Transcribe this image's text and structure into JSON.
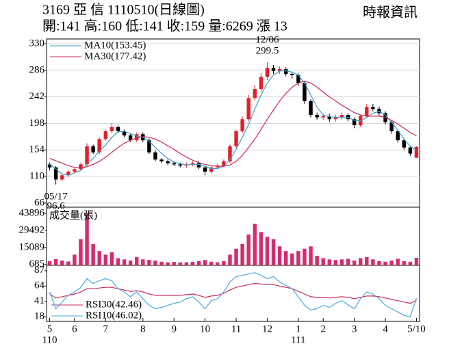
{
  "chart_data": [
    {
      "type": "candlestick",
      "title": "3169  亞  信 1110510(日線圖)",
      "subtitle": "開:141 高:160 低:141 收:159 量:6269 漲 13",
      "source": "時報資訊",
      "up_color": "#e3202a",
      "down_color": "#000000",
      "grid": true,
      "ylim": [
        59,
        338
      ],
      "yticks": [
        66,
        110,
        154,
        198,
        242,
        286,
        330
      ],
      "open": [
        130,
        125,
        105,
        112,
        118,
        122,
        130,
        160,
        150,
        172,
        185,
        192,
        185,
        178,
        170,
        180,
        170,
        150,
        138,
        135,
        132,
        130,
        128,
        130,
        132,
        125,
        118,
        125,
        128,
        135,
        160,
        185,
        205,
        240,
        255,
        275,
        290,
        285,
        288,
        280,
        278,
        265,
        235,
        212,
        208,
        210,
        205,
        208,
        212,
        205,
        195,
        210,
        225,
        222,
        215,
        200,
        185,
        170,
        158,
        141
      ],
      "high": [
        133,
        127,
        115,
        121,
        125,
        133,
        165,
        163,
        175,
        188,
        198,
        195,
        188,
        181,
        183,
        183,
        173,
        153,
        141,
        138,
        135,
        133,
        133,
        135,
        135,
        128,
        128,
        131,
        138,
        163,
        188,
        210,
        245,
        262,
        282,
        299.5,
        295,
        292,
        291,
        284,
        281,
        268,
        238,
        216,
        214,
        214,
        212,
        216,
        215,
        208,
        213,
        230,
        230,
        226,
        218,
        203,
        188,
        173,
        161,
        160
      ],
      "low": [
        120,
        96.6,
        102,
        109,
        115,
        119,
        127,
        147,
        147,
        169,
        182,
        182,
        175,
        167,
        167,
        167,
        147,
        135,
        132,
        129,
        127,
        125,
        125,
        127,
        122,
        112,
        115,
        122,
        125,
        132,
        157,
        182,
        202,
        236,
        250,
        270,
        280,
        280,
        276,
        272,
        260,
        230,
        208,
        204,
        204,
        201,
        201,
        204,
        201,
        190,
        192,
        207,
        218,
        211,
        196,
        181,
        166,
        154,
        144,
        141
      ],
      "close": [
        125,
        105,
        112,
        118,
        122,
        130,
        160,
        150,
        172,
        185,
        192,
        185,
        178,
        170,
        180,
        170,
        150,
        138,
        135,
        132,
        130,
        128,
        130,
        132,
        125,
        118,
        125,
        128,
        135,
        160,
        185,
        205,
        240,
        255,
        275,
        290,
        285,
        288,
        280,
        278,
        265,
        235,
        212,
        208,
        210,
        205,
        208,
        212,
        205,
        195,
        210,
        225,
        222,
        215,
        200,
        185,
        170,
        158,
        148,
        159
      ],
      "series": [
        {
          "name": "MA10(153.45)",
          "color": "#3a9fc8",
          "values": [
            130,
            122,
            114,
            112,
            116,
            120,
            130,
            140,
            152,
            162,
            175,
            184,
            185,
            181,
            177,
            175,
            168,
            158,
            148,
            140,
            134,
            131,
            129,
            130,
            130,
            127,
            123,
            123,
            127,
            138,
            155,
            175,
            196,
            222,
            245,
            265,
            278,
            285,
            285,
            283,
            278,
            265,
            245,
            225,
            212,
            209,
            208,
            208,
            208,
            203,
            202,
            208,
            215,
            218,
            212,
            200,
            187,
            172,
            160,
            153.45
          ]
        },
        {
          "name": "MA30(177.42)",
          "color": "#c8285a",
          "values": [
            140,
            136,
            132,
            128,
            125,
            124,
            126,
            130,
            135,
            142,
            150,
            158,
            165,
            170,
            174,
            176,
            175,
            172,
            167,
            161,
            155,
            148,
            142,
            137,
            133,
            130,
            128,
            127,
            127,
            129,
            135,
            145,
            158,
            172,
            188,
            205,
            220,
            235,
            248,
            258,
            265,
            268,
            265,
            258,
            250,
            242,
            235,
            228,
            222,
            216,
            212,
            210,
            210,
            210,
            208,
            203,
            197,
            190,
            183,
            177.42
          ]
        }
      ],
      "annotations": [
        {
          "text": "12/06",
          "value": 299.5
        },
        {
          "text": "05/17",
          "value": 96.6
        }
      ]
    },
    {
      "type": "bar",
      "title": "成交量(張)",
      "color": "#d42c6e",
      "ylim": [
        0,
        49000
      ],
      "yticks": [
        685,
        15089,
        29492,
        43896
      ],
      "values": [
        3500,
        5200,
        4000,
        3200,
        9000,
        22000,
        43896,
        18000,
        12000,
        9000,
        11000,
        6000,
        5000,
        4000,
        7000,
        5000,
        4500,
        4000,
        3000,
        2500,
        2800,
        2500,
        2600,
        3000,
        3500,
        4500,
        3000,
        2500,
        3500,
        9000,
        14000,
        18000,
        26000,
        35000,
        28000,
        24000,
        22000,
        16000,
        12000,
        10000,
        12000,
        14000,
        16000,
        8000,
        6000,
        5000,
        4500,
        5000,
        5500,
        4000,
        6000,
        7000,
        5000,
        3500,
        3000,
        4000,
        5500,
        3500,
        3000,
        6269
      ]
    },
    {
      "type": "line",
      "ylim": [
        11,
        95
      ],
      "yticks": [
        18,
        41,
        64,
        87
      ],
      "categories": [
        "5",
        null,
        null,
        null,
        "6",
        null,
        null,
        null,
        null,
        "7",
        null,
        null,
        null,
        null,
        null,
        "8",
        null,
        null,
        null,
        null,
        "9",
        null,
        null,
        null,
        null,
        "10",
        null,
        null,
        null,
        null,
        "11",
        null,
        null,
        null,
        null,
        "12",
        null,
        null,
        null,
        null,
        "1",
        null,
        null,
        null,
        "2",
        null,
        null,
        null,
        null,
        "3",
        null,
        null,
        null,
        null,
        "4",
        null,
        null,
        null,
        null,
        "5/10"
      ],
      "years": [
        "110",
        null,
        null,
        null,
        null,
        null,
        null,
        null,
        null,
        null,
        null,
        null,
        null,
        null,
        null,
        null,
        null,
        null,
        null,
        null,
        null,
        null,
        null,
        null,
        null,
        null,
        null,
        null,
        null,
        null,
        null,
        null,
        null,
        null,
        null,
        null,
        null,
        null,
        null,
        null,
        "111",
        null,
        null,
        null,
        null,
        null,
        null,
        null,
        null,
        null,
        null,
        null,
        null,
        null,
        null,
        null,
        null,
        null,
        null,
        null
      ],
      "series": [
        {
          "name": "RSI30(42.46)",
          "color": "#c8285a",
          "values": [
            52,
            46,
            48,
            50,
            52,
            55,
            60,
            60,
            61,
            62,
            62,
            60,
            58,
            56,
            57,
            55,
            52,
            50,
            50,
            50,
            50,
            50,
            51,
            52,
            50,
            47,
            49,
            50,
            53,
            58,
            62,
            64,
            66,
            68,
            67,
            66,
            66,
            64,
            62,
            60,
            56,
            52,
            48,
            47,
            47,
            46,
            47,
            48,
            47,
            45,
            47,
            49,
            49,
            48,
            46,
            44,
            42,
            40,
            38,
            42.46
          ]
        },
        {
          "name": "RSI10(46.02)",
          "color": "#4aa8dc",
          "values": [
            55,
            30,
            40,
            50,
            55,
            62,
            75,
            68,
            72,
            75,
            72,
            60,
            55,
            48,
            55,
            45,
            35,
            30,
            32,
            35,
            38,
            40,
            45,
            48,
            40,
            30,
            42,
            45,
            55,
            70,
            78,
            80,
            82,
            84,
            80,
            75,
            78,
            70,
            65,
            60,
            48,
            35,
            28,
            30,
            35,
            32,
            38,
            42,
            36,
            30,
            45,
            55,
            52,
            45,
            35,
            30,
            25,
            20,
            18,
            46.02
          ]
        }
      ]
    }
  ]
}
